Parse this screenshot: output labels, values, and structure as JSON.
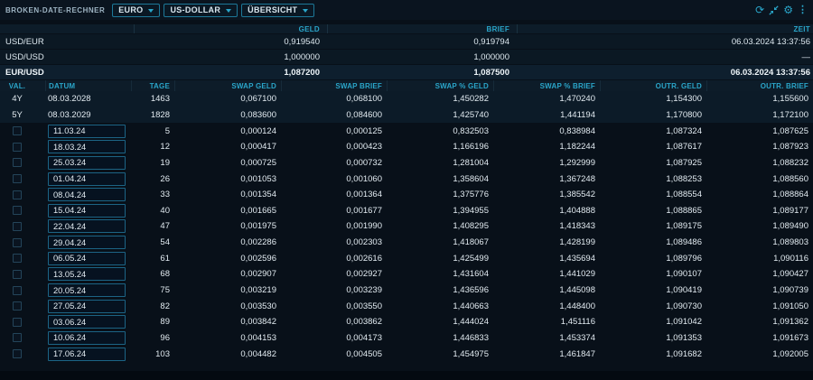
{
  "colors": {
    "accent": "#2aa5c9",
    "background": "#081019",
    "header_bar": "#0d1c29",
    "input_border": "#1c6485"
  },
  "topbar": {
    "title": "BROKEN-DATE-RECHNER",
    "dropdowns": [
      {
        "label": "EURO"
      },
      {
        "label": "US-DOLLAR"
      },
      {
        "label": "ÜBERSICHT"
      }
    ],
    "icons": [
      "refresh-icon",
      "collapse-icon",
      "settings-gear-icon",
      "kebab-menu-icon"
    ]
  },
  "rates": {
    "columns": [
      "GELD",
      "BRIEF",
      "ZEIT"
    ],
    "rows": [
      {
        "pair": "USD/EUR",
        "geld": "0,919540",
        "brief": "0,919794",
        "zeit": "06.03.2024 13:37:56",
        "bold": false
      },
      {
        "pair": "USD/USD",
        "geld": "1,000000",
        "brief": "1,000000",
        "zeit": "—",
        "bold": false
      },
      {
        "pair": "EUR/USD",
        "geld": "1,087200",
        "brief": "1,087500",
        "zeit": "06.03.2024 13:37:56",
        "bold": true
      }
    ]
  },
  "table": {
    "columns": [
      "VAL.",
      "DATUM",
      "TAGE",
      "SWAP GELD",
      "SWAP BRIEF",
      "SWAP % GELD",
      "SWAP % BRIEF",
      "OUTR. GELD",
      "OUTR. BRIEF"
    ],
    "rows": [
      {
        "val": "4Y",
        "datum": "08.03.2028",
        "editable": false,
        "tage": "1463",
        "swap_geld": "0,067100",
        "swap_brief": "0,068100",
        "swap_pct_geld": "1,450282",
        "swap_pct_brief": "1,470240",
        "outr_geld": "1,154300",
        "outr_brief": "1,155600"
      },
      {
        "val": "5Y",
        "datum": "08.03.2029",
        "editable": false,
        "tage": "1828",
        "swap_geld": "0,083600",
        "swap_brief": "0,084600",
        "swap_pct_geld": "1,425740",
        "swap_pct_brief": "1,441194",
        "outr_geld": "1,170800",
        "outr_brief": "1,172100"
      },
      {
        "val": "",
        "datum": "11.03.24",
        "editable": true,
        "tage": "5",
        "swap_geld": "0,000124",
        "swap_brief": "0,000125",
        "swap_pct_geld": "0,832503",
        "swap_pct_brief": "0,838984",
        "outr_geld": "1,087324",
        "outr_brief": "1,087625"
      },
      {
        "val": "",
        "datum": "18.03.24",
        "editable": true,
        "tage": "12",
        "swap_geld": "0,000417",
        "swap_brief": "0,000423",
        "swap_pct_geld": "1,166196",
        "swap_pct_brief": "1,182244",
        "outr_geld": "1,087617",
        "outr_brief": "1,087923"
      },
      {
        "val": "",
        "datum": "25.03.24",
        "editable": true,
        "tage": "19",
        "swap_geld": "0,000725",
        "swap_brief": "0,000732",
        "swap_pct_geld": "1,281004",
        "swap_pct_brief": "1,292999",
        "outr_geld": "1,087925",
        "outr_brief": "1,088232"
      },
      {
        "val": "",
        "datum": "01.04.24",
        "editable": true,
        "tage": "26",
        "swap_geld": "0,001053",
        "swap_brief": "0,001060",
        "swap_pct_geld": "1,358604",
        "swap_pct_brief": "1,367248",
        "outr_geld": "1,088253",
        "outr_brief": "1,088560"
      },
      {
        "val": "",
        "datum": "08.04.24",
        "editable": true,
        "tage": "33",
        "swap_geld": "0,001354",
        "swap_brief": "0,001364",
        "swap_pct_geld": "1,375776",
        "swap_pct_brief": "1,385542",
        "outr_geld": "1,088554",
        "outr_brief": "1,088864"
      },
      {
        "val": "",
        "datum": "15.04.24",
        "editable": true,
        "tage": "40",
        "swap_geld": "0,001665",
        "swap_brief": "0,001677",
        "swap_pct_geld": "1,394955",
        "swap_pct_brief": "1,404888",
        "outr_geld": "1,088865",
        "outr_brief": "1,089177"
      },
      {
        "val": "",
        "datum": "22.04.24",
        "editable": true,
        "tage": "47",
        "swap_geld": "0,001975",
        "swap_brief": "0,001990",
        "swap_pct_geld": "1,408295",
        "swap_pct_brief": "1,418343",
        "outr_geld": "1,089175",
        "outr_brief": "1,089490"
      },
      {
        "val": "",
        "datum": "29.04.24",
        "editable": true,
        "tage": "54",
        "swap_geld": "0,002286",
        "swap_brief": "0,002303",
        "swap_pct_geld": "1,418067",
        "swap_pct_brief": "1,428199",
        "outr_geld": "1,089486",
        "outr_brief": "1,089803"
      },
      {
        "val": "",
        "datum": "06.05.24",
        "editable": true,
        "tage": "61",
        "swap_geld": "0,002596",
        "swap_brief": "0,002616",
        "swap_pct_geld": "1,425499",
        "swap_pct_brief": "1,435694",
        "outr_geld": "1,089796",
        "outr_brief": "1,090116"
      },
      {
        "val": "",
        "datum": "13.05.24",
        "editable": true,
        "tage": "68",
        "swap_geld": "0,002907",
        "swap_brief": "0,002927",
        "swap_pct_geld": "1,431604",
        "swap_pct_brief": "1,441029",
        "outr_geld": "1,090107",
        "outr_brief": "1,090427"
      },
      {
        "val": "",
        "datum": "20.05.24",
        "editable": true,
        "tage": "75",
        "swap_geld": "0,003219",
        "swap_brief": "0,003239",
        "swap_pct_geld": "1,436596",
        "swap_pct_brief": "1,445098",
        "outr_geld": "1,090419",
        "outr_brief": "1,090739"
      },
      {
        "val": "",
        "datum": "27.05.24",
        "editable": true,
        "tage": "82",
        "swap_geld": "0,003530",
        "swap_brief": "0,003550",
        "swap_pct_geld": "1,440663",
        "swap_pct_brief": "1,448400",
        "outr_geld": "1,090730",
        "outr_brief": "1,091050"
      },
      {
        "val": "",
        "datum": "03.06.24",
        "editable": true,
        "tage": "89",
        "swap_geld": "0,003842",
        "swap_brief": "0,003862",
        "swap_pct_geld": "1,444024",
        "swap_pct_brief": "1,451116",
        "outr_geld": "1,091042",
        "outr_brief": "1,091362"
      },
      {
        "val": "",
        "datum": "10.06.24",
        "editable": true,
        "tage": "96",
        "swap_geld": "0,004153",
        "swap_brief": "0,004173",
        "swap_pct_geld": "1,446833",
        "swap_pct_brief": "1,453374",
        "outr_geld": "1,091353",
        "outr_brief": "1,091673"
      },
      {
        "val": "",
        "datum": "17.06.24",
        "editable": true,
        "tage": "103",
        "swap_geld": "0,004482",
        "swap_brief": "0,004505",
        "swap_pct_geld": "1,454975",
        "swap_pct_brief": "1,461847",
        "outr_geld": "1,091682",
        "outr_brief": "1,092005"
      }
    ]
  }
}
